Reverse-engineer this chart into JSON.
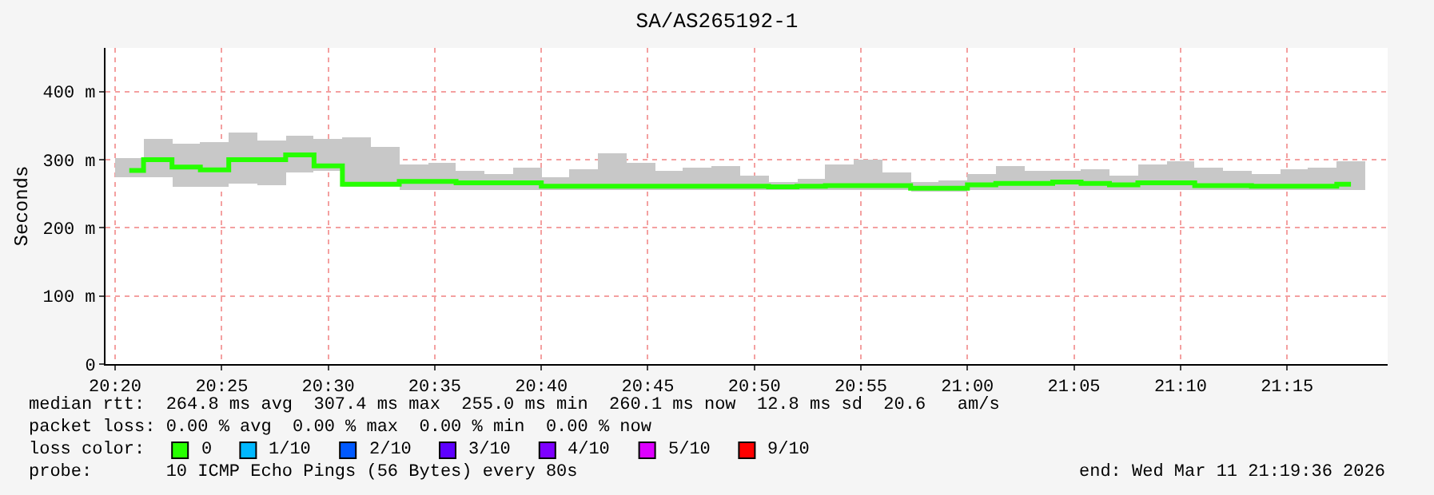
{
  "chart_data": {
    "type": "step",
    "title": "SA/AS265192-1",
    "ylabel": "Seconds",
    "x": [
      20.3444,
      20.3667,
      20.3889,
      20.4111,
      20.4333,
      20.4556,
      20.4778,
      20.5,
      20.5222,
      20.5444,
      20.5667,
      20.5889,
      20.6111,
      20.6333,
      20.6556,
      20.6778,
      20.7,
      20.7222,
      20.7444,
      20.7667,
      20.7889,
      20.8111,
      20.8333,
      20.8556,
      20.8778,
      20.9,
      20.9222,
      20.9444,
      20.9667,
      20.9889,
      21.0111,
      21.0333,
      21.0556,
      21.0778,
      21.1,
      21.1222,
      21.1444,
      21.1667,
      21.1889,
      21.2111,
      21.2333,
      21.2556,
      21.2778,
      21.3
    ],
    "series": [
      {
        "type": "bar",
        "color": "#c8c8c8",
        "base": [
          275,
          275,
          259,
          259,
          265,
          262,
          282,
          283,
          259,
          259,
          256,
          256,
          256,
          256,
          256,
          256,
          256,
          256,
          256,
          256,
          256,
          256,
          256,
          256,
          256,
          256,
          256,
          256,
          254,
          254,
          256,
          256,
          256,
          256,
          256,
          256,
          256,
          256,
          256,
          256,
          256,
          256,
          256,
          256
        ],
        "values": [
          27,
          56,
          64,
          67,
          75,
          66,
          54,
          48,
          73,
          59,
          38,
          39,
          27,
          22,
          33,
          19,
          30,
          54,
          39,
          27,
          32,
          35,
          20,
          12,
          16,
          38,
          44,
          26,
          14,
          16,
          22,
          35,
          27,
          27,
          30,
          20,
          38,
          42,
          33,
          28,
          22,
          30,
          33,
          42
        ]
      },
      {
        "name": "0",
        "color": "#26ff00",
        "values": [
          284,
          300,
          289,
          285,
          300,
          300,
          307,
          291,
          264,
          264,
          268,
          268,
          266,
          266,
          266,
          261,
          261,
          261,
          261,
          261,
          261,
          261,
          261,
          260,
          261,
          262,
          262,
          262,
          258,
          258,
          263,
          265,
          265,
          267,
          265,
          263,
          266,
          266,
          262,
          262,
          261,
          261,
          261,
          264
        ]
      },
      {
        "type": "scatter",
        "name": "1/10",
        "color": "#00b8ff",
        "values": [
          null,
          null,
          null,
          null,
          null,
          null,
          null,
          null,
          null,
          null,
          null,
          null,
          null,
          null,
          null,
          null,
          null,
          null,
          null,
          null,
          null,
          null,
          null,
          null,
          null,
          null,
          null,
          null,
          null,
          null,
          null,
          null,
          null,
          null,
          null,
          null,
          null,
          null,
          null,
          null,
          null,
          null,
          null,
          null
        ]
      },
      {
        "type": "scatter",
        "name": "2/10",
        "color": "#0059ff",
        "values": [
          null,
          null,
          null,
          null,
          null,
          null,
          null,
          null,
          null,
          null,
          null,
          null,
          null,
          null,
          null,
          null,
          null,
          null,
          null,
          null,
          null,
          null,
          null,
          null,
          null,
          null,
          null,
          null,
          null,
          null,
          null,
          null,
          null,
          null,
          null,
          null,
          null,
          null,
          null,
          null,
          null,
          null,
          null,
          null
        ]
      },
      {
        "type": "scatter",
        "name": "3/10",
        "color": "#5e00ff",
        "values": [
          null,
          null,
          null,
          null,
          null,
          null,
          null,
          null,
          null,
          null,
          null,
          null,
          null,
          null,
          null,
          null,
          null,
          null,
          null,
          null,
          null,
          null,
          null,
          null,
          null,
          null,
          null,
          null,
          null,
          null,
          null,
          null,
          null,
          null,
          null,
          null,
          null,
          null,
          null,
          null,
          null,
          null,
          null,
          null
        ]
      },
      {
        "type": "scatter",
        "name": "4/10",
        "color": "#7e00ff",
        "values": [
          null,
          null,
          null,
          null,
          null,
          null,
          null,
          null,
          null,
          null,
          null,
          null,
          null,
          null,
          null,
          null,
          null,
          null,
          null,
          null,
          null,
          null,
          null,
          null,
          null,
          null,
          null,
          null,
          null,
          null,
          null,
          null,
          null,
          null,
          null,
          null,
          null,
          null,
          null,
          null,
          null,
          null,
          null,
          null
        ]
      },
      {
        "type": "scatter",
        "name": "5/10",
        "color": "#dd00ff",
        "values": [
          null,
          null,
          null,
          null,
          null,
          null,
          null,
          null,
          null,
          null,
          null,
          null,
          null,
          null,
          null,
          null,
          null,
          null,
          null,
          null,
          null,
          null,
          null,
          null,
          null,
          null,
          null,
          null,
          null,
          null,
          null,
          null,
          null,
          null,
          null,
          null,
          null,
          null,
          null,
          null,
          null,
          null,
          null,
          null
        ]
      },
      {
        "type": "scatter",
        "name": "9/10",
        "color": "#ff0000",
        "values": [
          null,
          null,
          null,
          null,
          null,
          null,
          null,
          null,
          null,
          null,
          null,
          null,
          null,
          null,
          null,
          null,
          null,
          null,
          null,
          null,
          null,
          null,
          null,
          null,
          null,
          null,
          null,
          null,
          null,
          null,
          null,
          null,
          null,
          null,
          null,
          null,
          null,
          null,
          null,
          null,
          null,
          null,
          null,
          null
        ]
      }
    ],
    "xlim": [
      20.3258,
      21.3287
    ],
    "xticks": [
      {
        "value": 20.3333,
        "label": "20:20"
      },
      {
        "value": 20.4167,
        "label": "20:25"
      },
      {
        "value": 20.5,
        "label": "20:30"
      },
      {
        "value": 20.5833,
        "label": "20:35"
      },
      {
        "value": 20.6667,
        "label": "20:40"
      },
      {
        "value": 20.75,
        "label": "20:45"
      },
      {
        "value": 20.8333,
        "label": "20:50"
      },
      {
        "value": 20.9167,
        "label": "20:55"
      },
      {
        "value": 21.0,
        "label": "21:00"
      },
      {
        "value": 21.0833,
        "label": "21:05"
      },
      {
        "value": 21.1667,
        "label": "21:10"
      },
      {
        "value": 21.25,
        "label": "21:15"
      }
    ],
    "ylim": [
      0,
      464
    ],
    "yticks": [
      0,
      {
        "value": 100,
        "label": "100 m"
      },
      {
        "value": 200,
        "label": "200 m"
      },
      {
        "value": 300,
        "label": "300 m"
      },
      {
        "value": 400,
        "label": "400 m"
      }
    ],
    "grid": true,
    "legend": "bottom",
    "legend_title": "loss color:",
    "annotations": [
      "median rtt:  264.8 ms avg  307.4 ms max  255.0 ms min  260.1 ms now  12.8 ms sd  20.6   am/s",
      "packet loss: 0.00 % avg  0.00 % max  0.00 % min  0.00 % now",
      "probe:       10 ICMP Echo Pings (56 Bytes) every 80s",
      "end: Wed Mar 11 21:19:36 2026"
    ]
  }
}
